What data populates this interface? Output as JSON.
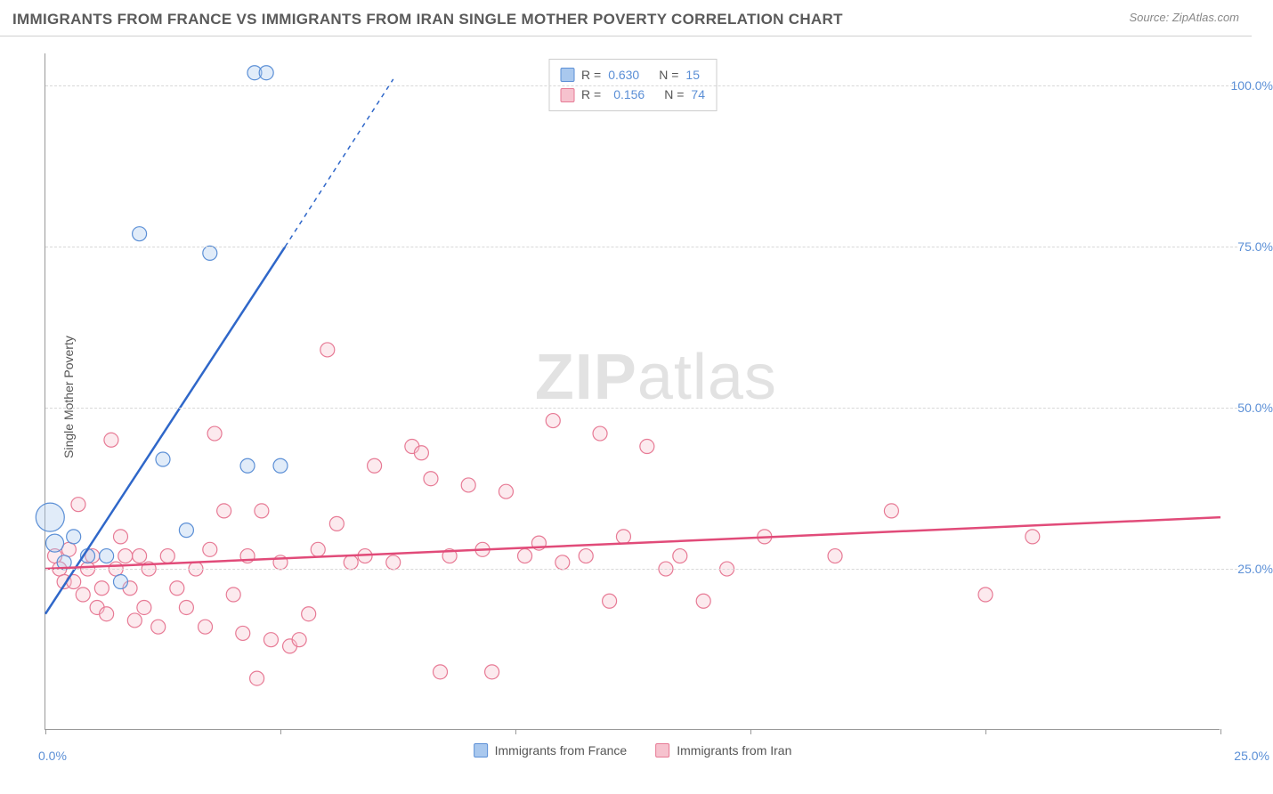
{
  "header": {
    "title": "IMMIGRANTS FROM FRANCE VS IMMIGRANTS FROM IRAN SINGLE MOTHER POVERTY CORRELATION CHART",
    "source": "Source: ZipAtlas.com"
  },
  "ylabel": "Single Mother Poverty",
  "watermark": {
    "part1": "ZIP",
    "part2": "atlas"
  },
  "chart": {
    "type": "scatter",
    "background_color": "#ffffff",
    "grid_color": "#d8d8d8",
    "axis_color": "#999999",
    "label_color": "#5b8fd6",
    "text_color": "#555555",
    "xlim": [
      0,
      25
    ],
    "ylim": [
      0,
      105
    ],
    "xticks": [
      0,
      5,
      10,
      15,
      20,
      25
    ],
    "xtick_labels_shown": {
      "left": "0.0%",
      "right": "25.0%"
    },
    "yticks": [
      25,
      50,
      75,
      100
    ],
    "ytick_labels": [
      "25.0%",
      "50.0%",
      "75.0%",
      "100.0%"
    ],
    "marker_radius": 8,
    "marker_opacity": 0.35,
    "trend_line_width": 2.5,
    "series": [
      {
        "name": "Immigrants from France",
        "fill_color": "#a9c8ee",
        "stroke_color": "#5b8fd6",
        "trend_color": "#2f67c9",
        "R": "0.630",
        "N": "15",
        "trend": {
          "x1": 0,
          "y1": 18,
          "x2": 5.1,
          "y2": 75,
          "dash_x2": 7.4,
          "dash_y2": 101
        },
        "points": [
          {
            "x": 0.1,
            "y": 33,
            "r": 16
          },
          {
            "x": 0.2,
            "y": 29,
            "r": 10
          },
          {
            "x": 0.4,
            "y": 26,
            "r": 8
          },
          {
            "x": 0.6,
            "y": 30,
            "r": 8
          },
          {
            "x": 0.9,
            "y": 27,
            "r": 8
          },
          {
            "x": 1.3,
            "y": 27,
            "r": 8
          },
          {
            "x": 1.6,
            "y": 23,
            "r": 8
          },
          {
            "x": 2.0,
            "y": 77,
            "r": 8
          },
          {
            "x": 2.5,
            "y": 42,
            "r": 8
          },
          {
            "x": 3.0,
            "y": 31,
            "r": 8
          },
          {
            "x": 3.5,
            "y": 74,
            "r": 8
          },
          {
            "x": 4.3,
            "y": 41,
            "r": 8
          },
          {
            "x": 4.45,
            "y": 102,
            "r": 8
          },
          {
            "x": 4.7,
            "y": 102,
            "r": 8
          },
          {
            "x": 5.0,
            "y": 41,
            "r": 8
          }
        ]
      },
      {
        "name": "Immigrants from Iran",
        "fill_color": "#f6c2ce",
        "stroke_color": "#e77a95",
        "trend_color": "#e14b79",
        "R": "0.156",
        "N": "74",
        "trend": {
          "x1": 0,
          "y1": 25,
          "x2": 25,
          "y2": 33
        },
        "points": [
          {
            "x": 0.2,
            "y": 27
          },
          {
            "x": 0.3,
            "y": 25
          },
          {
            "x": 0.4,
            "y": 23
          },
          {
            "x": 0.5,
            "y": 28
          },
          {
            "x": 0.6,
            "y": 23
          },
          {
            "x": 0.7,
            "y": 35
          },
          {
            "x": 0.8,
            "y": 21
          },
          {
            "x": 0.9,
            "y": 25
          },
          {
            "x": 1.0,
            "y": 27
          },
          {
            "x": 1.1,
            "y": 19
          },
          {
            "x": 1.2,
            "y": 22
          },
          {
            "x": 1.3,
            "y": 18
          },
          {
            "x": 1.4,
            "y": 45
          },
          {
            "x": 1.5,
            "y": 25
          },
          {
            "x": 1.6,
            "y": 30
          },
          {
            "x": 1.7,
            "y": 27
          },
          {
            "x": 1.8,
            "y": 22
          },
          {
            "x": 1.9,
            "y": 17
          },
          {
            "x": 2.0,
            "y": 27
          },
          {
            "x": 2.1,
            "y": 19
          },
          {
            "x": 2.2,
            "y": 25
          },
          {
            "x": 2.4,
            "y": 16
          },
          {
            "x": 2.6,
            "y": 27
          },
          {
            "x": 2.8,
            "y": 22
          },
          {
            "x": 3.0,
            "y": 19
          },
          {
            "x": 3.2,
            "y": 25
          },
          {
            "x": 3.4,
            "y": 16
          },
          {
            "x": 3.5,
            "y": 28
          },
          {
            "x": 3.6,
            "y": 46
          },
          {
            "x": 3.8,
            "y": 34
          },
          {
            "x": 4.0,
            "y": 21
          },
          {
            "x": 4.2,
            "y": 15
          },
          {
            "x": 4.3,
            "y": 27
          },
          {
            "x": 4.5,
            "y": 8
          },
          {
            "x": 4.6,
            "y": 34
          },
          {
            "x": 4.8,
            "y": 14
          },
          {
            "x": 5.0,
            "y": 26
          },
          {
            "x": 5.2,
            "y": 13
          },
          {
            "x": 5.4,
            "y": 14
          },
          {
            "x": 5.6,
            "y": 18
          },
          {
            "x": 5.8,
            "y": 28
          },
          {
            "x": 6.0,
            "y": 59
          },
          {
            "x": 6.2,
            "y": 32
          },
          {
            "x": 6.5,
            "y": 26
          },
          {
            "x": 6.8,
            "y": 27
          },
          {
            "x": 7.0,
            "y": 41
          },
          {
            "x": 7.4,
            "y": 26
          },
          {
            "x": 7.8,
            "y": 44
          },
          {
            "x": 8.0,
            "y": 43
          },
          {
            "x": 8.2,
            "y": 39
          },
          {
            "x": 8.4,
            "y": 9
          },
          {
            "x": 8.6,
            "y": 27
          },
          {
            "x": 9.0,
            "y": 38
          },
          {
            "x": 9.3,
            "y": 28
          },
          {
            "x": 9.5,
            "y": 9
          },
          {
            "x": 9.8,
            "y": 37
          },
          {
            "x": 10.2,
            "y": 27
          },
          {
            "x": 10.5,
            "y": 29
          },
          {
            "x": 10.8,
            "y": 48
          },
          {
            "x": 11.0,
            "y": 26
          },
          {
            "x": 11.5,
            "y": 27
          },
          {
            "x": 11.8,
            "y": 46
          },
          {
            "x": 12.0,
            "y": 20
          },
          {
            "x": 12.3,
            "y": 30
          },
          {
            "x": 12.8,
            "y": 44
          },
          {
            "x": 13.2,
            "y": 25
          },
          {
            "x": 13.5,
            "y": 27
          },
          {
            "x": 14.0,
            "y": 20
          },
          {
            "x": 14.5,
            "y": 25
          },
          {
            "x": 15.3,
            "y": 30
          },
          {
            "x": 16.8,
            "y": 27
          },
          {
            "x": 18.0,
            "y": 34
          },
          {
            "x": 20.0,
            "y": 21
          },
          {
            "x": 21.0,
            "y": 30
          }
        ]
      }
    ]
  },
  "legend": {
    "top": {
      "r_label": "R =",
      "n_label": "N ="
    },
    "bottom": {
      "items": [
        "Immigrants from France",
        "Immigrants from Iran"
      ]
    }
  }
}
